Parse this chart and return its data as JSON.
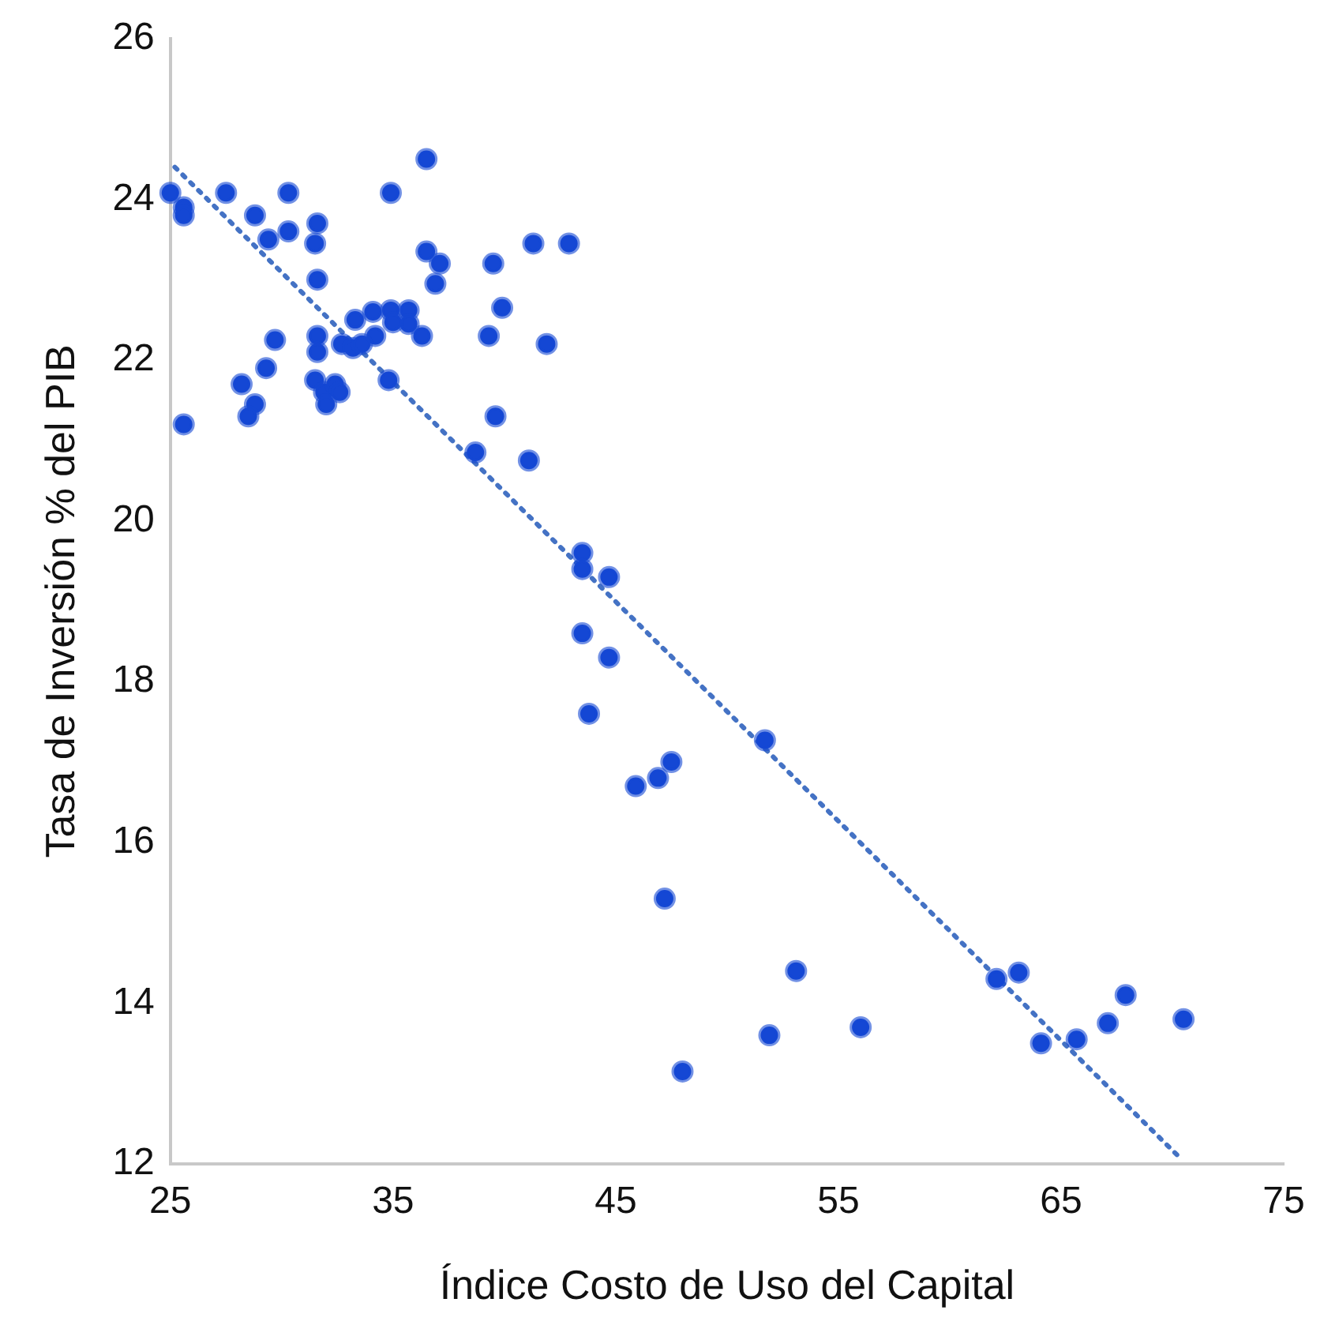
{
  "chart_data": {
    "type": "scatter",
    "xlabel": "Índice Costo de Uso del Capital",
    "ylabel": "Tasa de Inversión % del PIB",
    "xlim": [
      25,
      75
    ],
    "xticks": [
      25,
      35,
      45,
      55,
      65,
      75
    ],
    "ylim": [
      12,
      26
    ],
    "yticks": [
      12,
      14,
      16,
      18,
      20,
      22,
      24,
      26
    ],
    "grid": false,
    "legend": false,
    "marker": "circle",
    "series": [
      {
        "color": "#1447d4",
        "x": [
          25.0,
          25.6,
          25.6,
          25.6,
          27.5,
          28.8,
          29.4,
          30.3,
          30.3,
          31.6,
          31.5,
          31.6,
          36.5,
          34.9,
          36.5,
          37.1,
          36.9,
          39.5,
          41.3,
          42.9,
          39.9,
          39.3,
          41.9,
          39.6,
          38.7,
          41.1,
          29.7,
          31.6,
          31.6,
          32.7,
          33.3,
          34.1,
          34.9,
          35.7,
          35.7,
          35.0,
          34.2,
          33.2,
          33.6,
          36.3,
          34.8,
          31.5,
          28.2,
          29.3,
          28.8,
          28.5,
          31.9,
          32.4,
          32.6,
          32.0,
          43.5,
          43.5,
          44.7,
          43.5,
          44.7,
          43.8,
          51.7,
          47.5,
          46.9,
          45.9,
          47.2,
          48.0,
          51.9,
          53.1,
          56.0,
          62.1,
          63.1,
          64.1,
          65.7,
          67.1,
          67.9,
          70.5
        ],
        "values": [
          24.08,
          23.9,
          23.8,
          21.2,
          24.08,
          23.8,
          23.5,
          24.08,
          23.6,
          23.7,
          23.45,
          23.0,
          24.5,
          24.08,
          23.35,
          23.2,
          22.95,
          23.2,
          23.45,
          23.45,
          22.65,
          22.3,
          22.2,
          21.3,
          20.85,
          20.75,
          22.25,
          22.3,
          22.1,
          22.2,
          22.5,
          22.6,
          22.62,
          22.62,
          22.45,
          22.47,
          22.3,
          22.15,
          22.2,
          22.3,
          21.75,
          21.75,
          21.7,
          21.9,
          21.45,
          21.3,
          21.6,
          21.7,
          21.6,
          21.45,
          19.6,
          19.4,
          19.3,
          18.6,
          18.3,
          17.6,
          17.27,
          17.0,
          16.8,
          16.7,
          15.3,
          13.15,
          13.6,
          14.4,
          13.7,
          14.3,
          14.38,
          13.5,
          13.55,
          13.75,
          14.1,
          13.8
        ]
      },
      {
        "type": "line",
        "color": "#4472c4",
        "line_style": "dotted",
        "marker": "none",
        "x": [
          25.2,
          70.4
        ],
        "values": [
          24.4,
          12.06
        ]
      }
    ]
  }
}
